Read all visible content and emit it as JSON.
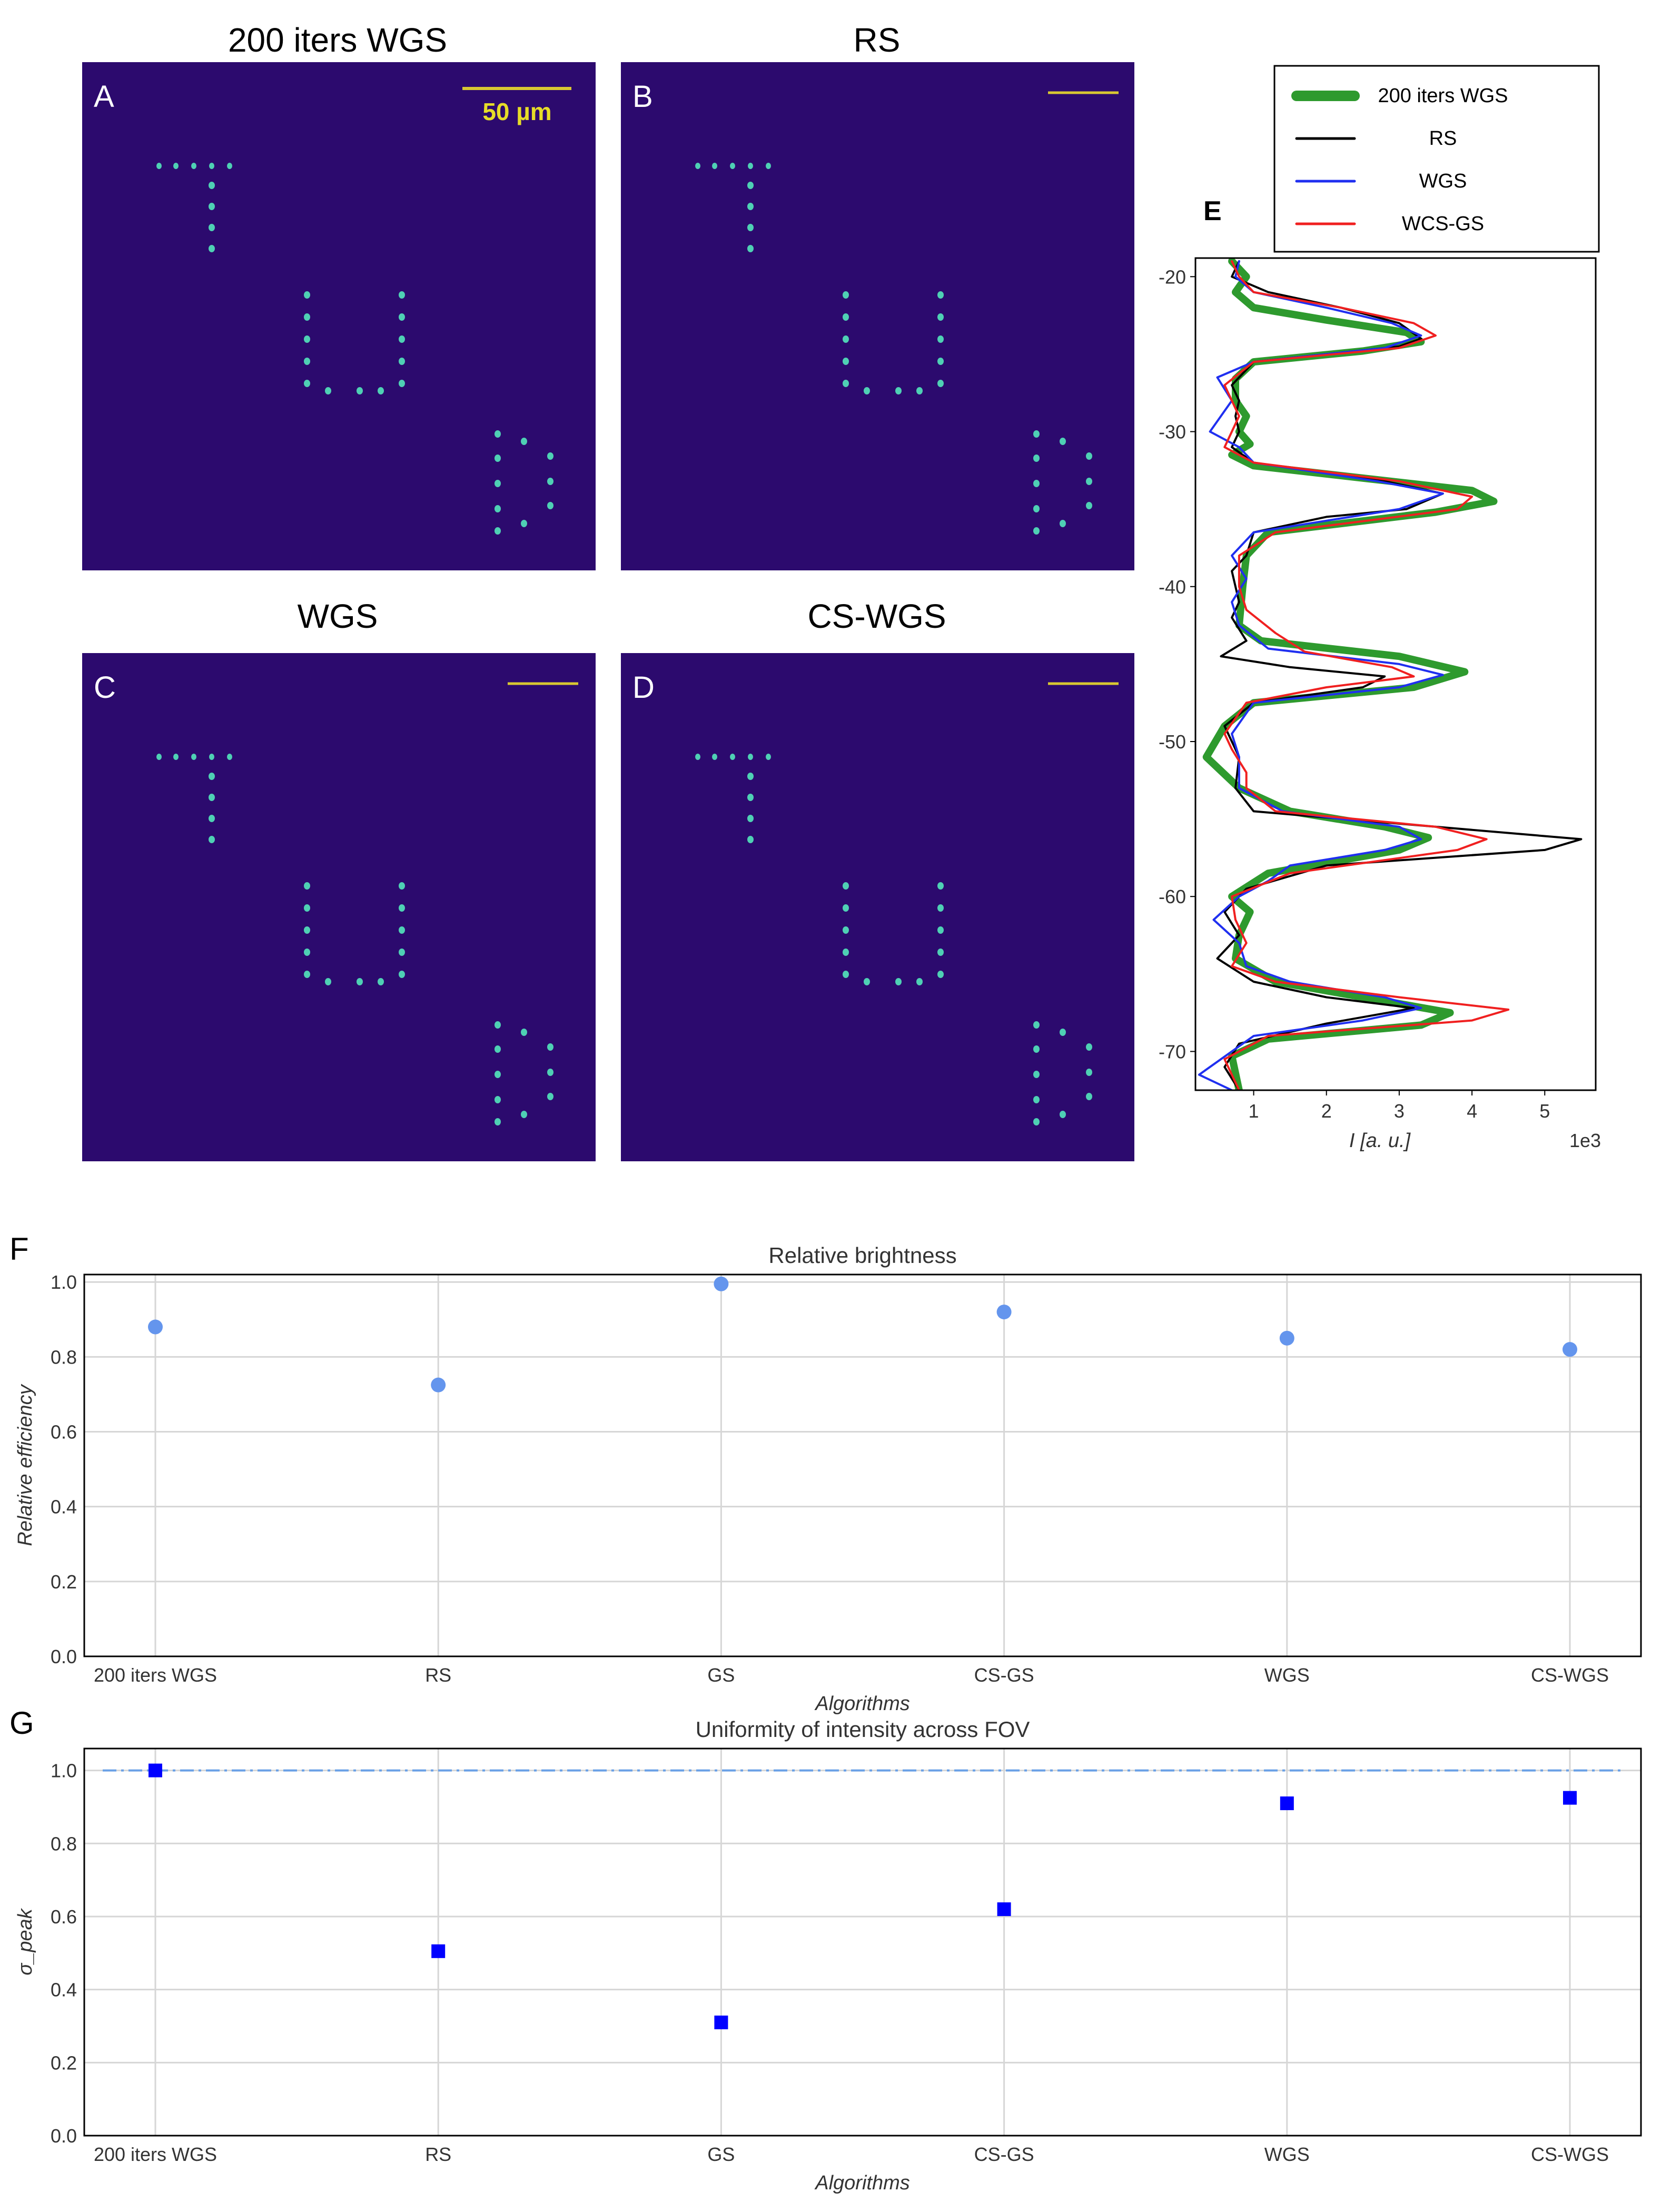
{
  "panels": {
    "A": {
      "letter": "A",
      "title": "200 iters WGS",
      "scalebar_label": "50 µm"
    },
    "B": {
      "letter": "B",
      "title": "RS"
    },
    "C": {
      "letter": "C",
      "title": "WGS"
    },
    "D": {
      "letter": "D",
      "title": "CS-WGS"
    }
  },
  "colors": {
    "image_background": "#2c0a6e",
    "spot": "#4fd0b4",
    "scalebar": "#d8c832",
    "scalebar_text": "#e6dc28",
    "green": "#2e9a2e",
    "black": "#000000",
    "blue": "#1f2ff0",
    "red": "#f02020",
    "marker_F": "#6495ed",
    "marker_G": "#0000ff",
    "dashline": "#6aa0e6",
    "grid": "#d6d6d6"
  },
  "chart_data": [
    {
      "id": "E",
      "type": "line",
      "letter": "E",
      "xlabel": "I [a. u.]",
      "x_multiplier": "1e3",
      "xlim": [
        0.2,
        5.7
      ],
      "ylim": [
        -72.5,
        -18.8
      ],
      "x_ticks": [
        1,
        2,
        3,
        4,
        5
      ],
      "y_ticks": [
        -20,
        -30,
        -40,
        -50,
        -60,
        -70
      ],
      "legend_position": "top-right",
      "series": [
        {
          "name": "200 iters WGS",
          "color": "#2e9a2e",
          "width": 14,
          "points": [
            [
              0.7,
              -19
            ],
            [
              0.9,
              -20
            ],
            [
              0.75,
              -21
            ],
            [
              1.0,
              -22
            ],
            [
              2.0,
              -22.8
            ],
            [
              3.1,
              -23.6
            ],
            [
              3.3,
              -24.2
            ],
            [
              2.5,
              -24.8
            ],
            [
              1.0,
              -25.5
            ],
            [
              0.75,
              -26.6
            ],
            [
              0.75,
              -28
            ],
            [
              0.9,
              -29
            ],
            [
              0.8,
              -30
            ],
            [
              0.95,
              -30.8
            ],
            [
              0.7,
              -31.5
            ],
            [
              1.0,
              -32.2
            ],
            [
              2.5,
              -33
            ],
            [
              4.0,
              -33.8
            ],
            [
              4.3,
              -34.5
            ],
            [
              3.5,
              -35.2
            ],
            [
              1.2,
              -36.5
            ],
            [
              0.9,
              -38
            ],
            [
              0.85,
              -40
            ],
            [
              0.8,
              -42.5
            ],
            [
              1.1,
              -43.5
            ],
            [
              3.0,
              -44.5
            ],
            [
              3.9,
              -45.5
            ],
            [
              3.2,
              -46.5
            ],
            [
              1.0,
              -47.5
            ],
            [
              0.6,
              -49
            ],
            [
              0.35,
              -51
            ],
            [
              0.8,
              -53
            ],
            [
              1.5,
              -54.5
            ],
            [
              2.8,
              -55.5
            ],
            [
              3.4,
              -56.2
            ],
            [
              3.0,
              -57
            ],
            [
              1.2,
              -58.5
            ],
            [
              0.7,
              -60
            ],
            [
              0.95,
              -61
            ],
            [
              0.8,
              -62.5
            ],
            [
              0.75,
              -64
            ],
            [
              1.3,
              -65.5
            ],
            [
              2.5,
              -66.5
            ],
            [
              3.7,
              -67.5
            ],
            [
              3.3,
              -68.3
            ],
            [
              1.2,
              -69.2
            ],
            [
              0.7,
              -70.3
            ],
            [
              0.8,
              -72.5
            ]
          ]
        },
        {
          "name": "RS",
          "color": "#000000",
          "width": 4,
          "points": [
            [
              0.8,
              -19
            ],
            [
              0.7,
              -20
            ],
            [
              1.2,
              -21
            ],
            [
              2.2,
              -22
            ],
            [
              3.0,
              -23
            ],
            [
              3.3,
              -24
            ],
            [
              3.0,
              -24.5
            ],
            [
              1.0,
              -25.5
            ],
            [
              0.7,
              -27
            ],
            [
              0.8,
              -28
            ],
            [
              0.75,
              -29
            ],
            [
              0.8,
              -30
            ],
            [
              0.7,
              -31
            ],
            [
              1.0,
              -32
            ],
            [
              2.8,
              -33.2
            ],
            [
              3.6,
              -34
            ],
            [
              3.1,
              -35
            ],
            [
              2.0,
              -35.5
            ],
            [
              1.0,
              -36.5
            ],
            [
              0.9,
              -38
            ],
            [
              0.7,
              -39
            ],
            [
              0.8,
              -41
            ],
            [
              0.7,
              -42
            ],
            [
              0.9,
              -43.5
            ],
            [
              0.55,
              -44.5
            ],
            [
              1.5,
              -45.2
            ],
            [
              2.8,
              -45.8
            ],
            [
              2.5,
              -46.5
            ],
            [
              1.0,
              -47.5
            ],
            [
              0.6,
              -49
            ],
            [
              0.8,
              -51
            ],
            [
              0.75,
              -53
            ],
            [
              1.0,
              -54.5
            ],
            [
              3.5,
              -55.5
            ],
            [
              5.5,
              -56.3
            ],
            [
              5.0,
              -57
            ],
            [
              2.0,
              -58
            ],
            [
              0.9,
              -59.5
            ],
            [
              0.6,
              -61
            ],
            [
              0.8,
              -62.5
            ],
            [
              0.5,
              -64
            ],
            [
              1.0,
              -65.5
            ],
            [
              2.0,
              -66.5
            ],
            [
              3.2,
              -67.2
            ],
            [
              2.0,
              -68.2
            ],
            [
              0.8,
              -69.5
            ],
            [
              0.6,
              -71
            ],
            [
              0.8,
              -72.5
            ]
          ]
        },
        {
          "name": "WGS",
          "color": "#1f2ff0",
          "width": 4,
          "points": [
            [
              0.8,
              -19
            ],
            [
              0.75,
              -20
            ],
            [
              1.0,
              -21
            ],
            [
              2.0,
              -22
            ],
            [
              2.9,
              -23
            ],
            [
              3.3,
              -23.8
            ],
            [
              2.8,
              -24.6
            ],
            [
              1.0,
              -25.5
            ],
            [
              0.5,
              -26.5
            ],
            [
              0.7,
              -28
            ],
            [
              0.4,
              -30
            ],
            [
              0.8,
              -31
            ],
            [
              1.0,
              -32
            ],
            [
              2.7,
              -33.2
            ],
            [
              3.6,
              -34
            ],
            [
              3.0,
              -35
            ],
            [
              1.0,
              -36.5
            ],
            [
              0.7,
              -38
            ],
            [
              0.9,
              -39.5
            ],
            [
              0.7,
              -41
            ],
            [
              0.8,
              -42.5
            ],
            [
              1.2,
              -44
            ],
            [
              3.0,
              -45
            ],
            [
              3.6,
              -45.7
            ],
            [
              3.0,
              -46.5
            ],
            [
              1.0,
              -47.5
            ],
            [
              0.7,
              -49.5
            ],
            [
              0.8,
              -51
            ],
            [
              0.8,
              -53
            ],
            [
              1.4,
              -54.5
            ],
            [
              3.0,
              -55.5
            ],
            [
              3.3,
              -56.3
            ],
            [
              2.8,
              -57
            ],
            [
              1.5,
              -58
            ],
            [
              1.2,
              -59
            ],
            [
              0.8,
              -60
            ],
            [
              0.45,
              -61.5
            ],
            [
              0.8,
              -63
            ],
            [
              0.9,
              -64.5
            ],
            [
              1.5,
              -65.5
            ],
            [
              2.8,
              -66.5
            ],
            [
              3.3,
              -67.2
            ],
            [
              2.5,
              -68
            ],
            [
              1.0,
              -69
            ],
            [
              0.7,
              -70
            ],
            [
              0.25,
              -71.5
            ],
            [
              0.7,
              -72.5
            ]
          ]
        },
        {
          "name": "WCS-GS",
          "color": "#f02020",
          "width": 4,
          "points": [
            [
              0.7,
              -19
            ],
            [
              0.8,
              -20
            ],
            [
              1.0,
              -21
            ],
            [
              2.2,
              -22
            ],
            [
              3.2,
              -23
            ],
            [
              3.5,
              -23.8
            ],
            [
              3.0,
              -24.6
            ],
            [
              1.0,
              -25.5
            ],
            [
              0.6,
              -27
            ],
            [
              0.8,
              -29
            ],
            [
              0.7,
              -30
            ],
            [
              0.6,
              -31
            ],
            [
              1.0,
              -32
            ],
            [
              3.0,
              -33.2
            ],
            [
              4.0,
              -34.2
            ],
            [
              3.8,
              -35
            ],
            [
              1.3,
              -36.5
            ],
            [
              0.8,
              -38
            ],
            [
              0.8,
              -40
            ],
            [
              0.9,
              -41.5
            ],
            [
              1.3,
              -43
            ],
            [
              1.7,
              -44.2
            ],
            [
              2.9,
              -45.2
            ],
            [
              3.2,
              -45.8
            ],
            [
              2.0,
              -46.5
            ],
            [
              0.9,
              -47.5
            ],
            [
              0.6,
              -49.5
            ],
            [
              0.7,
              -50.5
            ],
            [
              0.9,
              -52
            ],
            [
              0.9,
              -53
            ],
            [
              1.3,
              -54.5
            ],
            [
              3.5,
              -55.5
            ],
            [
              4.2,
              -56.3
            ],
            [
              3.8,
              -57
            ],
            [
              1.5,
              -58.5
            ],
            [
              0.7,
              -60
            ],
            [
              0.75,
              -61.5
            ],
            [
              0.9,
              -63
            ],
            [
              0.7,
              -64.5
            ],
            [
              1.3,
              -65.5
            ],
            [
              3.0,
              -66.5
            ],
            [
              4.5,
              -67.3
            ],
            [
              4.0,
              -68
            ],
            [
              1.2,
              -69
            ],
            [
              0.6,
              -70.5
            ],
            [
              0.8,
              -72.5
            ]
          ]
        }
      ]
    },
    {
      "id": "F",
      "type": "scatter",
      "letter": "F",
      "title": "Relative brightness",
      "xlabel": "Algorithms",
      "ylabel": "Relative efficiency",
      "categories": [
        "200 iters WGS",
        "RS",
        "GS",
        "CS-GS",
        "WGS",
        "CS-WGS"
      ],
      "values": [
        0.88,
        0.725,
        0.995,
        0.92,
        0.85,
        0.82
      ],
      "ylim": [
        0.0,
        1.02
      ],
      "y_ticks": [
        "0.0",
        "0.2",
        "0.4",
        "0.6",
        "0.8",
        "1.0"
      ],
      "grid": true
    },
    {
      "id": "G",
      "type": "scatter",
      "letter": "G",
      "title": "Uniformity of intensity across FOV",
      "xlabel": "Algorithms",
      "ylabel": "σ_peak",
      "categories": [
        "200 iters WGS",
        "RS",
        "GS",
        "CS-GS",
        "WGS",
        "CS-WGS"
      ],
      "values": [
        1.0,
        0.505,
        0.31,
        0.62,
        0.91,
        0.925
      ],
      "reference_line": 1.0,
      "ylim": [
        0.0,
        1.06
      ],
      "y_ticks": [
        "0.0",
        "0.2",
        "0.4",
        "0.6",
        "0.8",
        "1.0"
      ],
      "grid": true
    }
  ]
}
